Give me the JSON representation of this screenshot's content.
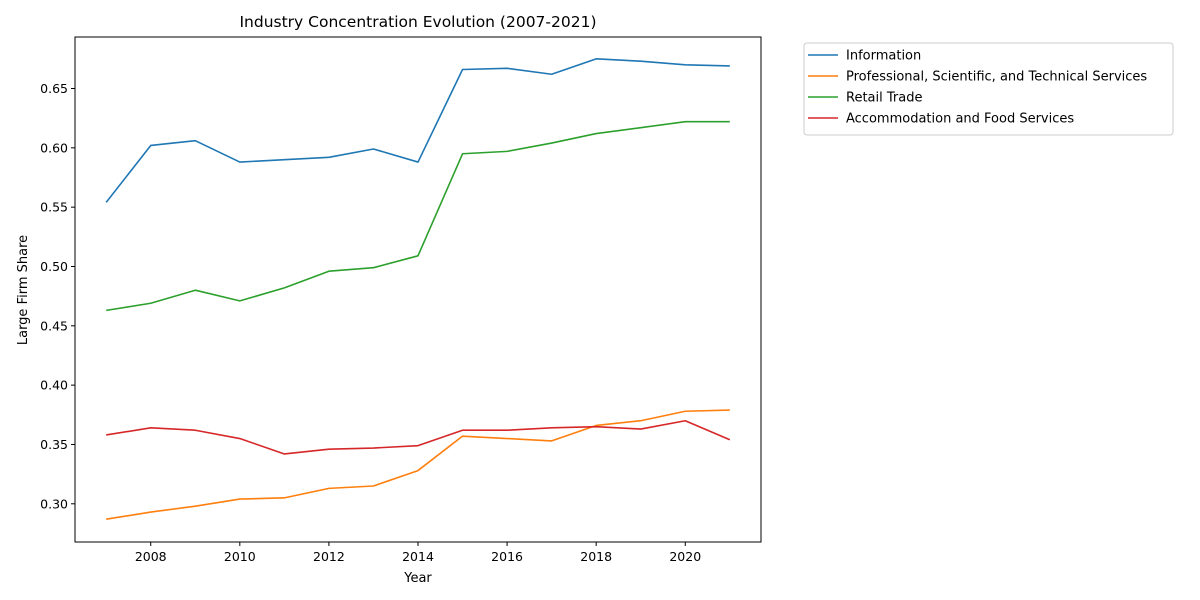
{
  "chart_data": {
    "type": "line",
    "title": "Industry Concentration Evolution (2007-2021)",
    "xlabel": "Year",
    "ylabel": "Large Firm Share",
    "x": [
      2007,
      2008,
      2009,
      2010,
      2011,
      2012,
      2013,
      2014,
      2015,
      2016,
      2017,
      2018,
      2019,
      2020,
      2021
    ],
    "xlim": [
      2006.3,
      2021.7
    ],
    "ylim": [
      0.2678,
      0.6934
    ],
    "xticks": [
      2008,
      2010,
      2012,
      2014,
      2016,
      2018,
      2020
    ],
    "yticks": [
      0.3,
      0.35,
      0.4,
      0.45,
      0.5,
      0.55,
      0.6,
      0.65
    ],
    "ytick_labels": [
      "0.30",
      "0.35",
      "0.40",
      "0.45",
      "0.50",
      "0.55",
      "0.60",
      "0.65"
    ],
    "grid": false,
    "legend_position": "outside-top-right",
    "series": [
      {
        "name": "Information",
        "color": "#1f77b4",
        "values": [
          0.554,
          0.602,
          0.606,
          0.588,
          0.59,
          0.592,
          0.599,
          0.588,
          0.666,
          0.667,
          0.662,
          0.675,
          0.673,
          0.67,
          0.669
        ]
      },
      {
        "name": "Professional, Scientific, and Technical Services",
        "color": "#ff7f0e",
        "values": [
          0.287,
          0.293,
          0.298,
          0.304,
          0.305,
          0.313,
          0.315,
          0.328,
          0.357,
          0.355,
          0.353,
          0.366,
          0.37,
          0.378,
          0.379
        ]
      },
      {
        "name": "Retail Trade",
        "color": "#2ca02c",
        "values": [
          0.463,
          0.469,
          0.48,
          0.471,
          0.482,
          0.496,
          0.499,
          0.509,
          0.595,
          0.597,
          0.604,
          0.612,
          0.617,
          0.622,
          0.622
        ]
      },
      {
        "name": "Accommodation and Food Services",
        "color": "#d62728",
        "values": [
          0.358,
          0.364,
          0.362,
          0.355,
          0.342,
          0.346,
          0.347,
          0.349,
          0.362,
          0.362,
          0.364,
          0.365,
          0.363,
          0.37,
          0.354
        ]
      }
    ]
  }
}
